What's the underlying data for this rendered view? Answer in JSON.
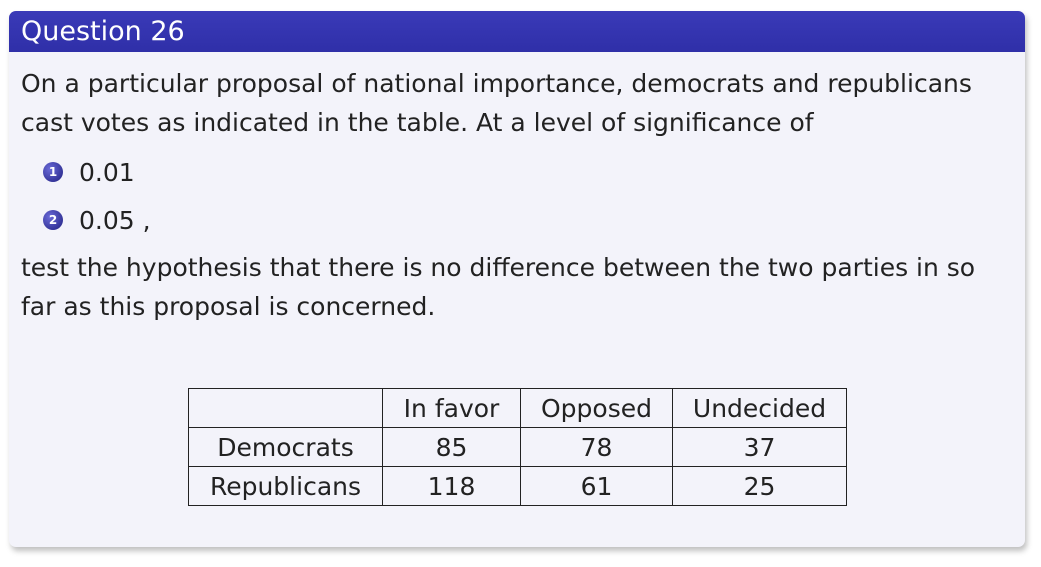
{
  "slide": {
    "title": "Question 26",
    "intro": "On a particular proposal of national importance, democrats and republicans cast votes as indicated in the table. At a level of significance of",
    "options": [
      {
        "marker": "1",
        "text": "0.01"
      },
      {
        "marker": "2",
        "text": "0.05 ,"
      }
    ],
    "conclusion": "test the hypothesis that there is no difference between the two parties in so far as this proposal is concerned."
  },
  "table": {
    "header": [
      "",
      "In favor",
      "Opposed",
      "Undecided"
    ],
    "rows": [
      [
        "Democrats",
        "85",
        "78",
        "37"
      ],
      [
        "Republicans",
        "118",
        "61",
        "25"
      ]
    ]
  },
  "colors": {
    "title_bar": "#3333b3",
    "slide_bg": "#f3f3fa",
    "text": "#222222"
  }
}
